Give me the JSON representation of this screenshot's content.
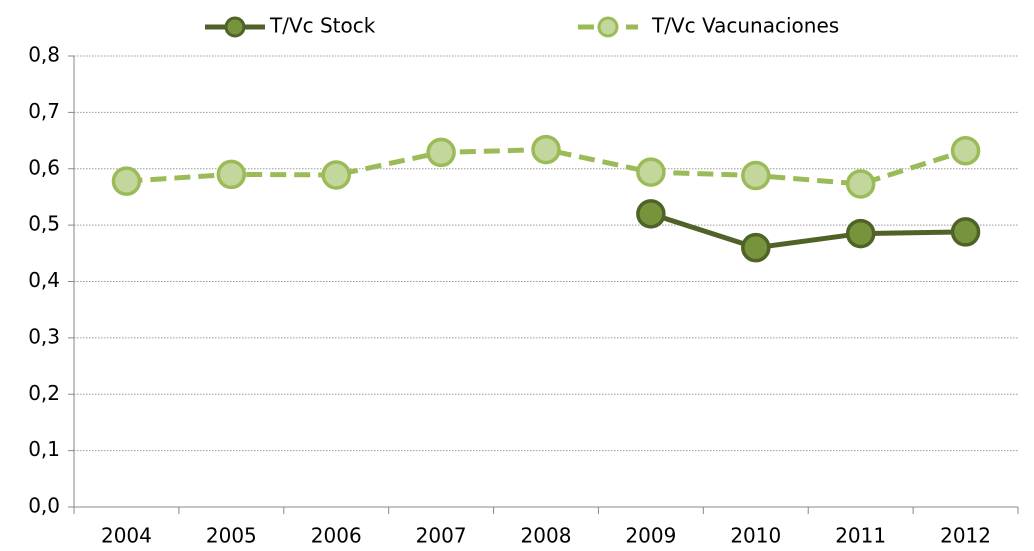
{
  "chart_data": {
    "type": "line",
    "categories": [
      "2004",
      "2005",
      "2006",
      "2007",
      "2008",
      "2009",
      "2010",
      "2011",
      "2012"
    ],
    "series": [
      {
        "name": "T/Vc Stock",
        "color": "#4f6228",
        "marker_color": "#77933c",
        "dashed": false,
        "values": [
          null,
          null,
          null,
          null,
          null,
          0.52,
          0.46,
          0.485,
          0.488
        ]
      },
      {
        "name": "T/Vc Vacunaciones",
        "color": "#9bbb59",
        "marker_color": "#c3d69b",
        "dashed": true,
        "values": [
          0.578,
          0.59,
          0.589,
          0.629,
          0.634,
          0.594,
          0.588,
          0.573,
          0.632
        ]
      }
    ],
    "ylim": [
      0,
      0.8
    ],
    "yticks": [
      {
        "value": 0,
        "label": "0,0"
      },
      {
        "value": 0.1,
        "label": "0,1"
      },
      {
        "value": 0.2,
        "label": "0,2"
      },
      {
        "value": 0.3,
        "label": "0,3"
      },
      {
        "value": 0.4,
        "label": "0,4"
      },
      {
        "value": 0.5,
        "label": "0,5"
      },
      {
        "value": 0.6,
        "label": "0,6"
      },
      {
        "value": 0.7,
        "label": "0,7"
      },
      {
        "value": 0.8,
        "label": "0,8"
      }
    ],
    "grid": true,
    "legend": "top"
  }
}
